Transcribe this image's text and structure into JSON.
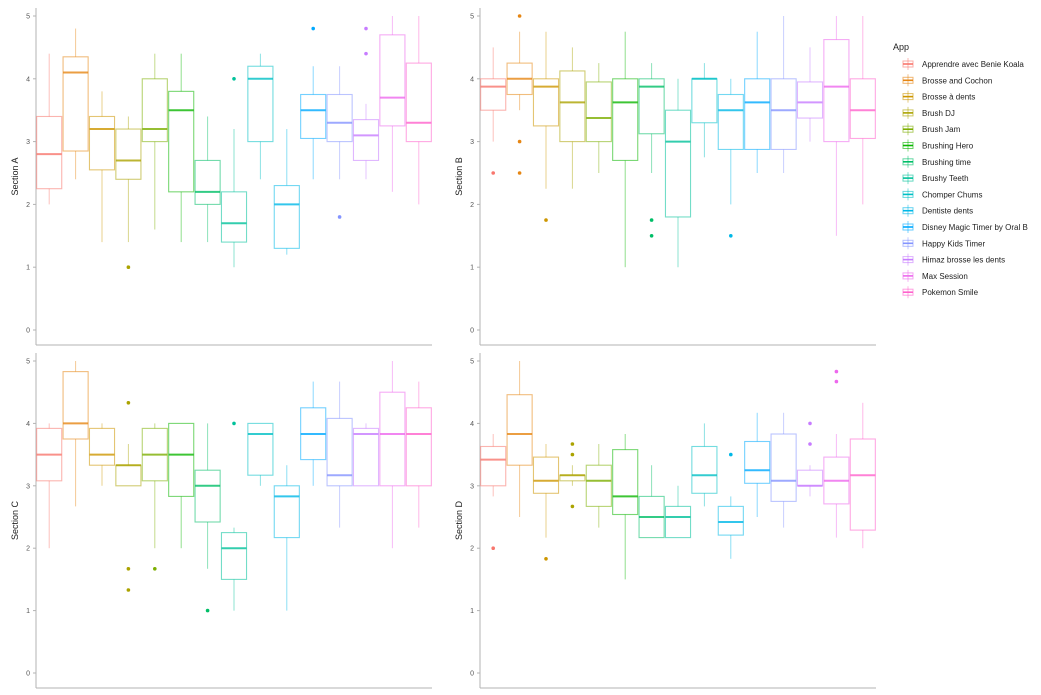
{
  "chart_data": {
    "type": "box",
    "facet_wrap": 2,
    "legend": {
      "title": "App",
      "position": "right",
      "entries": [
        {
          "name": "Apprendre avec Benie Koala",
          "color": "#F8766D"
        },
        {
          "name": "Brosse and Cochon",
          "color": "#E68613"
        },
        {
          "name": "Brosse à dents",
          "color": "#CD9600"
        },
        {
          "name": "Brush DJ",
          "color": "#ABA300"
        },
        {
          "name": "Brush Jam",
          "color": "#7CAE00"
        },
        {
          "name": "Brushing Hero",
          "color": "#0CB702"
        },
        {
          "name": "Brushing time",
          "color": "#00BE67"
        },
        {
          "name": "Brushy Teeth",
          "color": "#00C19A"
        },
        {
          "name": "Chomper Chums",
          "color": "#00BFC4"
        },
        {
          "name": "Dentiste dents",
          "color": "#00B8E7"
        },
        {
          "name": "Disney Magic Timer by Oral B",
          "color": "#00A9FF"
        },
        {
          "name": "Happy Kids Timer",
          "color": "#8494FF"
        },
        {
          "name": "Himaz brosse les dents",
          "color": "#C77CFF"
        },
        {
          "name": "Max Session",
          "color": "#ED68ED"
        },
        {
          "name": "Pokemon Smile",
          "color": "#FF61CC"
        }
      ]
    },
    "panels": [
      {
        "ylabel": "Section A",
        "ylim": [
          0,
          5
        ],
        "yticks": [
          "0",
          "1",
          "2",
          "3",
          "4",
          "5"
        ],
        "boxes": [
          {
            "app": "Apprendre avec Benie Koala",
            "stats": [
              2.0,
              2.25,
              2.8,
              3.4,
              4.4
            ],
            "outliers": []
          },
          {
            "app": "Brosse and Cochon",
            "stats": [
              2.4,
              2.85,
              4.1,
              4.35,
              4.8
            ],
            "outliers": []
          },
          {
            "app": "Brosse à dents",
            "stats": [
              1.4,
              2.55,
              3.2,
              3.4,
              3.8
            ],
            "outliers": []
          },
          {
            "app": "Brush DJ",
            "stats": [
              1.4,
              2.4,
              2.7,
              3.2,
              3.4
            ],
            "outliers": [
              1.0
            ]
          },
          {
            "app": "Brush Jam",
            "stats": [
              1.6,
              3.0,
              3.2,
              4.0,
              4.4
            ],
            "outliers": []
          },
          {
            "app": "Brushing Hero",
            "stats": [
              1.4,
              2.2,
              3.5,
              3.8,
              4.4
            ],
            "outliers": []
          },
          {
            "app": "Brushing time",
            "stats": [
              1.4,
              2.0,
              2.2,
              2.7,
              3.4
            ],
            "outliers": []
          },
          {
            "app": "Brushy Teeth",
            "stats": [
              1.0,
              1.4,
              1.7,
              2.2,
              3.2
            ],
            "outliers": [
              4.0
            ]
          },
          {
            "app": "Chomper Chums",
            "stats": [
              2.4,
              3.0,
              4.0,
              4.2,
              4.4
            ],
            "outliers": []
          },
          {
            "app": "Dentiste dents",
            "stats": [
              1.2,
              1.3,
              2.0,
              2.3,
              3.2
            ],
            "outliers": []
          },
          {
            "app": "Disney Magic Timer by Oral B",
            "stats": [
              2.4,
              3.05,
              3.5,
              3.75,
              4.2
            ],
            "outliers": [
              4.8
            ]
          },
          {
            "app": "Happy Kids Timer",
            "stats": [
              2.4,
              3.0,
              3.3,
              3.75,
              4.2
            ],
            "outliers": [
              1.8
            ]
          },
          {
            "app": "Himaz brosse les dents",
            "stats": [
              2.4,
              2.7,
              3.1,
              3.35,
              3.6
            ],
            "outliers": [
              4.8,
              4.4
            ]
          },
          {
            "app": "Max Session",
            "stats": [
              2.2,
              3.25,
              3.7,
              4.7,
              5.0
            ],
            "outliers": []
          },
          {
            "app": "Pokemon Smile",
            "stats": [
              2.0,
              3.0,
              3.3,
              4.25,
              5.0
            ],
            "outliers": []
          }
        ]
      },
      {
        "ylabel": "Section B",
        "ylim": [
          0,
          5
        ],
        "yticks": [
          "0",
          "1",
          "2",
          "3",
          "4",
          "5"
        ],
        "boxes": [
          {
            "app": "Apprendre avec Benie Koala",
            "stats": [
              3.0,
              3.5,
              3.875,
              4.0,
              4.5
            ],
            "outliers": [
              2.5
            ]
          },
          {
            "app": "Brosse and Cochon",
            "stats": [
              3.5,
              3.75,
              4.0,
              4.25,
              4.75
            ],
            "outliers": [
              5.0,
              3.0,
              2.5
            ]
          },
          {
            "app": "Brosse à dents",
            "stats": [
              2.25,
              3.25,
              3.875,
              4.0,
              4.75
            ],
            "outliers": [
              1.75
            ]
          },
          {
            "app": "Brush DJ",
            "stats": [
              2.25,
              3.0,
              3.625,
              4.125,
              4.5
            ],
            "outliers": []
          },
          {
            "app": "Brush Jam",
            "stats": [
              2.5,
              3.0,
              3.375,
              3.95,
              4.25
            ],
            "outliers": []
          },
          {
            "app": "Brushing Hero",
            "stats": [
              1.0,
              2.7,
              3.625,
              4.0,
              4.75
            ],
            "outliers": []
          },
          {
            "app": "Brushing time",
            "stats": [
              2.5,
              3.125,
              3.875,
              4.0,
              4.25
            ],
            "outliers": [
              1.75,
              1.5
            ]
          },
          {
            "app": "Brushy Teeth",
            "stats": [
              1.0,
              1.8,
              3.0,
              3.5,
              4.0
            ],
            "outliers": []
          },
          {
            "app": "Chomper Chums",
            "stats": [
              2.75,
              3.3,
              4.0,
              4.0,
              4.25
            ],
            "outliers": []
          },
          {
            "app": "Dentiste dents",
            "stats": [
              2.0,
              2.875,
              3.5,
              3.75,
              4.0
            ],
            "outliers": [
              1.5
            ]
          },
          {
            "app": "Disney Magic Timer by Oral B",
            "stats": [
              2.5,
              2.875,
              3.625,
              4.0,
              4.75
            ],
            "outliers": []
          },
          {
            "app": "Happy Kids Timer",
            "stats": [
              2.5,
              2.875,
              3.5,
              4.0,
              5.0
            ],
            "outliers": []
          },
          {
            "app": "Himaz brosse les dents",
            "stats": [
              3.0,
              3.375,
              3.625,
              3.95,
              4.5
            ],
            "outliers": []
          },
          {
            "app": "Max Session",
            "stats": [
              1.5,
              3.0,
              3.875,
              4.625,
              5.0
            ],
            "outliers": []
          },
          {
            "app": "Pokemon Smile",
            "stats": [
              2.0,
              3.05,
              3.5,
              4.0,
              5.0
            ],
            "outliers": []
          }
        ]
      },
      {
        "ylabel": "Section C",
        "ylim": [
          0,
          5
        ],
        "yticks": [
          "0",
          "1",
          "2",
          "3",
          "4",
          "5"
        ],
        "boxes": [
          {
            "app": "Apprendre avec Benie Koala",
            "stats": [
              2.0,
              3.08,
              3.5,
              3.92,
              4.0
            ],
            "outliers": []
          },
          {
            "app": "Brosse and Cochon",
            "stats": [
              2.67,
              3.75,
              4.0,
              4.83,
              5.0
            ],
            "outliers": []
          },
          {
            "app": "Brosse à dents",
            "stats": [
              3.0,
              3.33,
              3.5,
              3.92,
              4.0
            ],
            "outliers": []
          },
          {
            "app": "Brush DJ",
            "stats": [
              3.0,
              3.0,
              3.33,
              3.33,
              3.67
            ],
            "outliers": [
              4.33,
              1.67,
              1.33
            ]
          },
          {
            "app": "Brush Jam",
            "stats": [
              2.0,
              3.08,
              3.5,
              3.92,
              4.0
            ],
            "outliers": [
              1.67
            ]
          },
          {
            "app": "Brushing Hero",
            "stats": [
              2.0,
              2.83,
              3.5,
              4.0,
              4.0
            ],
            "outliers": []
          },
          {
            "app": "Brushing time",
            "stats": [
              1.67,
              2.42,
              3.0,
              3.25,
              4.0
            ],
            "outliers": [
              1.0
            ]
          },
          {
            "app": "Brushy Teeth",
            "stats": [
              1.0,
              1.5,
              2.0,
              2.25,
              2.33
            ],
            "outliers": [
              4.0
            ]
          },
          {
            "app": "Chomper Chums",
            "stats": [
              3.0,
              3.17,
              3.83,
              4.0,
              4.0
            ],
            "outliers": []
          },
          {
            "app": "Dentiste dents",
            "stats": [
              1.0,
              2.17,
              2.83,
              3.0,
              3.33
            ],
            "outliers": []
          },
          {
            "app": "Disney Magic Timer by Oral B",
            "stats": [
              3.0,
              3.42,
              3.83,
              4.25,
              4.67
            ],
            "outliers": []
          },
          {
            "app": "Happy Kids Timer",
            "stats": [
              2.33,
              3.0,
              3.17,
              4.08,
              4.67
            ],
            "outliers": []
          },
          {
            "app": "Himaz brosse les dents",
            "stats": [
              3.0,
              3.0,
              3.83,
              3.92,
              4.0
            ],
            "outliers": []
          },
          {
            "app": "Max Session",
            "stats": [
              2.0,
              3.0,
              3.83,
              4.5,
              5.0
            ],
            "outliers": []
          },
          {
            "app": "Pokemon Smile",
            "stats": [
              2.33,
              3.0,
              3.83,
              4.25,
              4.67
            ],
            "outliers": []
          }
        ]
      },
      {
        "ylabel": "Section D",
        "ylim": [
          0,
          5
        ],
        "yticks": [
          "0",
          "1",
          "2",
          "3",
          "4",
          "5"
        ],
        "boxes": [
          {
            "app": "Apprendre avec Benie Koala",
            "stats": [
              2.83,
              3.0,
              3.42,
              3.63,
              3.83
            ],
            "outliers": [
              2.0
            ]
          },
          {
            "app": "Brosse and Cochon",
            "stats": [
              2.5,
              3.33,
              3.83,
              4.46,
              5.0
            ],
            "outliers": []
          },
          {
            "app": "Brosse à dents",
            "stats": [
              2.17,
              2.88,
              3.08,
              3.46,
              3.67
            ],
            "outliers": [
              1.83
            ]
          },
          {
            "app": "Brush DJ",
            "stats": [
              3.0,
              3.08,
              3.17,
              3.17,
              3.33
            ],
            "outliers": [
              3.67,
              3.5,
              2.67
            ]
          },
          {
            "app": "Brush Jam",
            "stats": [
              2.33,
              2.67,
              3.08,
              3.33,
              3.67
            ],
            "outliers": []
          },
          {
            "app": "Brushing Hero",
            "stats": [
              1.5,
              2.54,
              2.83,
              3.58,
              3.83
            ],
            "outliers": []
          },
          {
            "app": "Brushing time",
            "stats": [
              2.17,
              2.17,
              2.5,
              2.83,
              3.33
            ],
            "outliers": []
          },
          {
            "app": "Brushy Teeth",
            "stats": [
              2.17,
              2.17,
              2.5,
              2.67,
              3.0
            ],
            "outliers": []
          },
          {
            "app": "Chomper Chums",
            "stats": [
              2.67,
              2.88,
              3.17,
              3.63,
              4.0
            ],
            "outliers": []
          },
          {
            "app": "Dentiste dents",
            "stats": [
              1.83,
              2.21,
              2.42,
              2.67,
              2.83
            ],
            "outliers": [
              3.5
            ]
          },
          {
            "app": "Disney Magic Timer by Oral B",
            "stats": [
              2.5,
              3.04,
              3.25,
              3.71,
              4.17
            ],
            "outliers": []
          },
          {
            "app": "Happy Kids Timer",
            "stats": [
              2.33,
              2.75,
              3.08,
              3.83,
              4.17
            ],
            "outliers": []
          },
          {
            "app": "Himaz brosse les dents",
            "stats": [
              2.83,
              3.0,
              3.0,
              3.25,
              3.33
            ],
            "outliers": [
              4.0,
              3.67
            ]
          },
          {
            "app": "Max Session",
            "stats": [
              2.17,
              2.71,
              3.08,
              3.46,
              3.83
            ],
            "outliers": [
              4.83,
              4.67
            ]
          },
          {
            "app": "Pokemon Smile",
            "stats": [
              2.0,
              2.29,
              3.17,
              3.75,
              4.33
            ],
            "outliers": []
          }
        ]
      }
    ]
  }
}
